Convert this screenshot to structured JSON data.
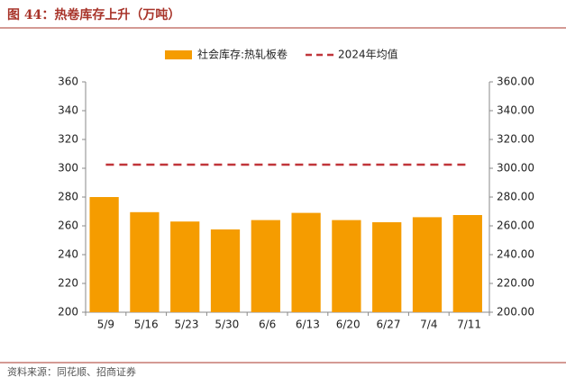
{
  "title": "图 44：热卷库存上升（万吨）",
  "source": "资料来源：同花顺、招商证券",
  "chart_data": {
    "type": "bar",
    "categories": [
      "5/9",
      "5/16",
      "5/23",
      "5/30",
      "6/6",
      "6/13",
      "6/20",
      "6/27",
      "7/4",
      "7/11"
    ],
    "series": [
      {
        "name": "社会库存:热轧板卷",
        "color": "#f59c00",
        "values": [
          280,
          269.5,
          263,
          257.5,
          264,
          269,
          264,
          262.5,
          266,
          267.5
        ]
      },
      {
        "name": "2024年均值",
        "color": "#c0353a",
        "type": "line",
        "dashed": true,
        "axis": "y2",
        "values": [
          302.5,
          302.5,
          302.5,
          302.5,
          302.5,
          302.5,
          302.5,
          302.5,
          302.5,
          302.5
        ]
      }
    ],
    "ylim": [
      200,
      360
    ],
    "yticks": [
      200,
      220,
      240,
      260,
      280,
      300,
      320,
      340,
      360
    ],
    "y2lim": [
      200,
      360
    ],
    "y2ticks": [
      {
        "value": 200,
        "label": "200.00"
      },
      {
        "value": 220,
        "label": "220.00"
      },
      {
        "value": 240,
        "label": "240.00"
      },
      {
        "value": 260,
        "label": "260.00"
      },
      {
        "value": 280,
        "label": "280.00"
      },
      {
        "value": 300,
        "label": "300.00"
      },
      {
        "value": 320,
        "label": "320.00"
      },
      {
        "value": 340,
        "label": "340.00"
      },
      {
        "value": 360,
        "label": "360.00"
      }
    ],
    "grid": false
  }
}
